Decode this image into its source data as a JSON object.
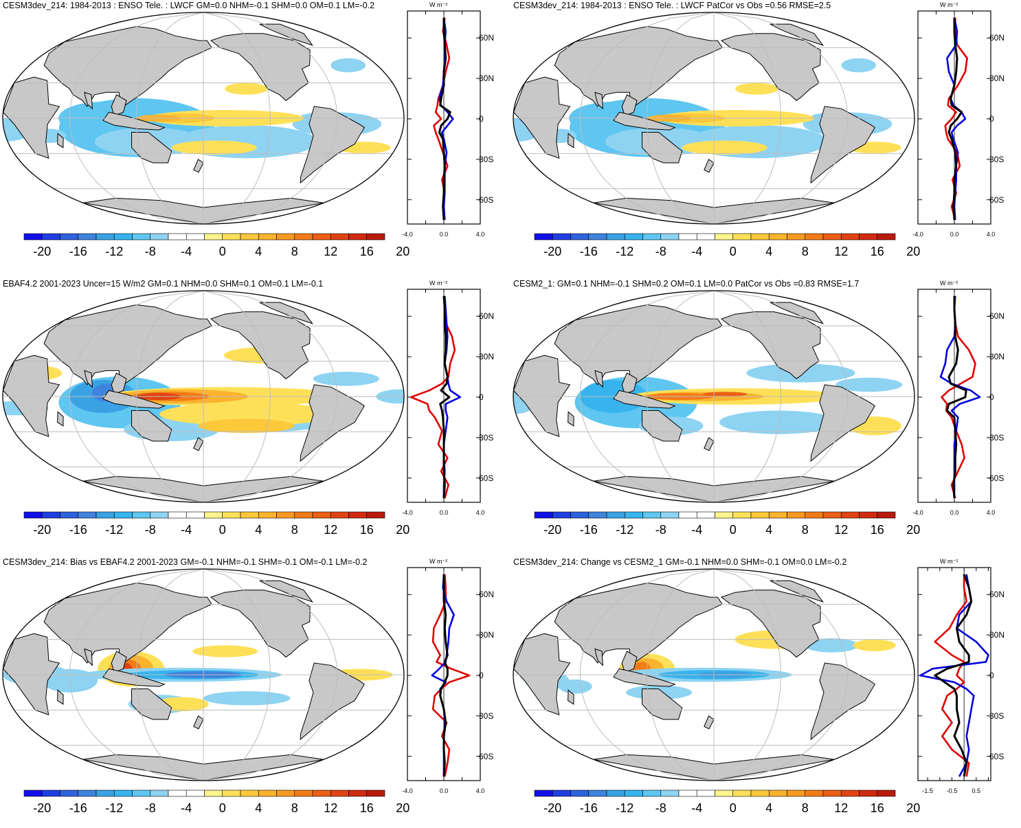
{
  "colorbar": {
    "colors": [
      "#1010e8",
      "#1f3fe0",
      "#2f62dd",
      "#3f83dd",
      "#3aa2e3",
      "#37b4ee",
      "#5ec6f1",
      "#8ed3f2",
      "#ffffff",
      "#ffffff",
      "#fef48e",
      "#fee058",
      "#fdc83a",
      "#fbb32d",
      "#f89a22",
      "#f37c18",
      "#ec5f14",
      "#e04312",
      "#d02a10",
      "#b91b0d"
    ],
    "labels": [
      "-20",
      "-16",
      "-12",
      "-8",
      "-4",
      "0",
      "4",
      "8",
      "12",
      "16",
      "20"
    ]
  },
  "series_colors": {
    "model": "#e00000",
    "obs": "#0000dd",
    "zero_line": "#000000",
    "black_line": "#000000"
  },
  "lat_labels": [
    "60N",
    "30N",
    "0",
    "30S",
    "60S"
  ],
  "units_label": "W m⁻²",
  "panels": [
    {
      "title": "CESM3dev_214: 1984-2013 : ENSO Tele. : LWCF GM=0.0 NHM=-0.1 SHM=0.0 OM=0.1 LM=-0.2",
      "pattern": "model_a",
      "zonal_xticks": [
        "-4.0",
        "0.0",
        "4.0"
      ],
      "chart_data": {
        "type": "line",
        "xlim": [
          -4,
          4
        ],
        "ylim": [
          -78,
          80
        ],
        "lat": [
          -75,
          -65,
          -55,
          -45,
          -35,
          -25,
          -15,
          -10,
          -5,
          0,
          5,
          10,
          15,
          25,
          35,
          45,
          55,
          65,
          75
        ],
        "series": [
          {
            "values": [
              0.1,
              -0.1,
              0.1,
              -0.2,
              0.4,
              -0.1,
              -0.6,
              -0.9,
              -1.1,
              -0.3,
              -0.9,
              -0.7,
              -0.6,
              -0.1,
              0.2,
              0.6,
              0.3,
              -0.1,
              0.1
            ]
          },
          {
            "values": [
              0.1,
              0.0,
              0.1,
              0.1,
              0.1,
              0.3,
              0.0,
              -0.2,
              0.4,
              1.0,
              0.4,
              -0.3,
              -0.5,
              -0.1,
              0.0,
              0.1,
              0.1,
              0.2,
              0.0
            ]
          },
          {
            "values": [
              0.0,
              -0.1,
              0.0,
              0.0,
              0.1,
              0.0,
              -0.1,
              -0.5,
              -0.3,
              0.4,
              0.7,
              -0.4,
              -0.3,
              0.0,
              0.0,
              0.2,
              0.1,
              0.0,
              0.0
            ]
          }
        ]
      }
    },
    {
      "title": "CESM3dev_214: 1984-2013 : ENSO Tele. : LWCF PatCor vs Obs =0.56 RMSE=2.5",
      "pattern": "model_a",
      "zonal_xticks": [
        "-4.0",
        "0.0",
        "4.0"
      ],
      "chart_data": {
        "type": "line",
        "xlim": [
          -4,
          4
        ],
        "ylim": [
          -78,
          80
        ],
        "lat": [
          -75,
          -65,
          -55,
          -45,
          -35,
          -25,
          -15,
          -10,
          -5,
          0,
          5,
          10,
          15,
          25,
          35,
          45,
          55,
          65,
          75
        ],
        "series": [
          {
            "values": [
              0.1,
              -0.3,
              0.2,
              -0.2,
              0.6,
              0.3,
              -0.7,
              -0.9,
              -1.0,
              -0.3,
              0.2,
              -0.7,
              -0.6,
              0.4,
              1.2,
              1.4,
              0.3,
              0.1,
              0.1
            ]
          },
          {
            "values": [
              0.1,
              0.0,
              0.1,
              0.2,
              0.2,
              0.4,
              -0.1,
              -0.3,
              0.3,
              1.2,
              0.8,
              -0.1,
              -0.4,
              0.0,
              -0.6,
              -0.8,
              0.2,
              0.3,
              0.0
            ]
          },
          {
            "values": [
              0.0,
              -0.1,
              0.0,
              0.0,
              0.2,
              0.1,
              -0.3,
              -0.6,
              -0.4,
              0.3,
              0.8,
              -0.3,
              -0.4,
              0.0,
              0.2,
              0.3,
              0.1,
              0.0,
              0.0
            ]
          }
        ]
      }
    },
    {
      "title": "EBAF4.2 2001-2023 Uncer=15 W/m2 GM=0.1 NHM=0.0 SHM=0.1 OM=0.1 LM=-0.1",
      "pattern": "obs",
      "zonal_xticks": [
        "-4.0",
        "0.0",
        "4.0"
      ],
      "chart_data": {
        "type": "line",
        "xlim": [
          -4,
          4
        ],
        "ylim": [
          -78,
          80
        ],
        "lat": [
          -75,
          -65,
          -55,
          -45,
          -35,
          -25,
          -15,
          -10,
          -5,
          0,
          5,
          10,
          15,
          25,
          35,
          45,
          55,
          65,
          75
        ],
        "series": [
          {
            "values": [
              0.1,
              0.5,
              -0.3,
              0.4,
              -0.6,
              -0.2,
              -1.0,
              -1.6,
              -1.8,
              -3.6,
              -1.6,
              -0.2,
              0.5,
              0.7,
              1.2,
              0.9,
              0.2,
              0.1,
              0.1
            ]
          },
          {
            "values": [
              0.0,
              0.0,
              0.1,
              0.0,
              0.0,
              0.2,
              0.4,
              0.2,
              0.2,
              1.8,
              0.7,
              0.5,
              0.4,
              0.1,
              0.3,
              0.4,
              0.3,
              0.2,
              0.1
            ]
          },
          {
            "values": [
              0.0,
              0.1,
              0.0,
              0.0,
              0.0,
              0.0,
              -0.1,
              -0.2,
              -0.4,
              0.6,
              -0.3,
              0.3,
              0.4,
              0.1,
              0.2,
              0.2,
              0.1,
              0.1,
              0.0
            ]
          }
        ]
      }
    },
    {
      "title": "CESM2_1: GM=0.1 NHM=-0.1 SHM=0.2 OM=0.1 LM=0.0 PatCor vs Obs =0.83 RMSE=1.7",
      "pattern": "model_b",
      "zonal_xticks": [
        "-4.0",
        "0.0",
        "4.0"
      ],
      "chart_data": {
        "type": "line",
        "xlim": [
          -4,
          4
        ],
        "ylim": [
          -78,
          80
        ],
        "lat": [
          -75,
          -65,
          -55,
          -45,
          -35,
          -25,
          -15,
          -10,
          -5,
          0,
          5,
          10,
          15,
          25,
          35,
          45,
          55,
          65,
          75
        ],
        "series": [
          {
            "values": [
              0.1,
              -0.3,
              0.4,
              1.1,
              0.8,
              0.2,
              -0.3,
              -0.9,
              -0.8,
              -1.4,
              -0.6,
              0.7,
              2.0,
              2.3,
              1.6,
              0.4,
              0.1,
              0.0,
              0.0
            ]
          },
          {
            "values": [
              0.0,
              0.0,
              0.0,
              0.0,
              0.0,
              0.2,
              0.4,
              -0.3,
              0.6,
              2.8,
              1.8,
              -0.3,
              -1.5,
              -1.0,
              -0.8,
              0.0,
              0.1,
              0.0,
              0.1
            ]
          },
          {
            "values": [
              0.0,
              -0.1,
              0.1,
              0.1,
              0.2,
              0.1,
              0.0,
              -0.8,
              -0.6,
              1.2,
              1.3,
              -0.4,
              -0.6,
              0.2,
              0.4,
              0.1,
              0.1,
              0.0,
              0.0
            ]
          }
        ]
      }
    },
    {
      "title": "CESM3dev_214: Bias vs EBAF4.2 2001-2023 GM=-0.1 NHM=-0.1 SHM=-0.1 OM=-0.1 LM=-0.2",
      "pattern": "bias",
      "zonal_xticks": [
        "-4.0",
        "0.0",
        "4.0"
      ],
      "chart_data": {
        "type": "line",
        "xlim": [
          -4,
          4
        ],
        "ylim": [
          -78,
          80
        ],
        "lat": [
          -75,
          -65,
          -55,
          -45,
          -35,
          -25,
          -15,
          -10,
          -5,
          0,
          5,
          10,
          15,
          25,
          35,
          45,
          55,
          65,
          75
        ],
        "series": [
          {
            "values": [
              0.1,
              0.4,
              0.6,
              -0.2,
              0.3,
              -1.2,
              -1.0,
              -0.3,
              0.6,
              2.8,
              0.8,
              -0.8,
              -0.4,
              -1.2,
              -1.1,
              -0.4,
              0.2,
              0.2,
              0.1
            ]
          },
          {
            "values": [
              0.0,
              0.0,
              0.0,
              0.0,
              0.1,
              0.0,
              -0.4,
              -0.4,
              0.2,
              -1.3,
              -0.5,
              0.2,
              0.3,
              0.5,
              0.6,
              1.1,
              0.3,
              -0.1,
              0.0
            ]
          },
          {
            "values": [
              0.0,
              0.1,
              0.0,
              0.0,
              0.2,
              0.0,
              -0.4,
              -0.3,
              0.1,
              0.4,
              0.4,
              0.1,
              0.4,
              0.2,
              0.1,
              0.2,
              0.0,
              0.0,
              0.0
            ]
          }
        ]
      }
    },
    {
      "title": "CESM3dev_214: Change vs CESM2_1 GM=-0.1 NHM=0.0 SHM=-0.1 OM=0.0 LM=-0.2",
      "pattern": "change",
      "zonal_xticks": [
        "-1.5",
        "-0.5",
        "0.5"
      ],
      "chart_data": {
        "type": "line",
        "xlim": [
          -1.9,
          1.1
        ],
        "ylim": [
          -78,
          80
        ],
        "lat": [
          -75,
          -65,
          -55,
          -45,
          -35,
          -25,
          -15,
          -10,
          -5,
          0,
          5,
          10,
          15,
          25,
          35,
          45,
          55,
          65,
          75
        ],
        "series": [
          {
            "values": [
              0.1,
              0.2,
              -0.5,
              -0.9,
              -0.5,
              -0.9,
              -0.7,
              -0.3,
              0.0,
              -0.3,
              -0.2,
              0.0,
              -0.5,
              -1.2,
              -0.6,
              -0.3,
              0.1,
              0.0,
              0.0
            ]
          },
          {
            "values": [
              -0.2,
              0.1,
              0.2,
              0.1,
              0.2,
              0.3,
              0.4,
              0.1,
              -0.4,
              -1.8,
              -1.3,
              0.9,
              1.0,
              0.5,
              -0.3,
              -0.2,
              0.3,
              0.2,
              0.1
            ]
          },
          {
            "values": [
              0.0,
              0.1,
              -0.1,
              -0.4,
              -0.2,
              -0.3,
              -0.3,
              -0.4,
              -0.8,
              -1.2,
              -0.7,
              0.2,
              0.2,
              -0.2,
              -0.3,
              0.1,
              0.3,
              0.2,
              0.0
            ]
          }
        ]
      }
    }
  ]
}
